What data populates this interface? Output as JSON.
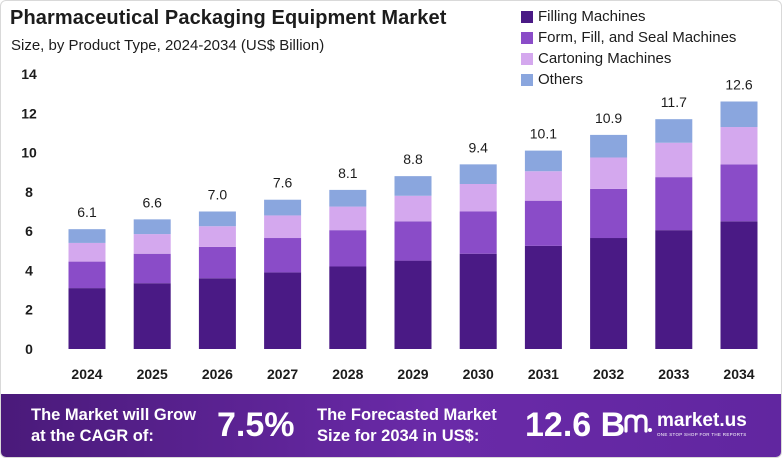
{
  "header": {
    "title": "Pharmaceutical Packaging Equipment Market",
    "subtitle": "Size, by Product Type, 2024-2034 (US$ Billion)"
  },
  "colors": {
    "filling": "#4a1a85",
    "ffs": "#8a4cc8",
    "cartoning": "#d4a8ee",
    "others": "#8aa6de",
    "footer_bg": "#5a2596"
  },
  "chart_data": {
    "type": "bar",
    "stacked": true,
    "title": "Pharmaceutical Packaging Equipment Market",
    "subtitle": "Size, by Product Type, 2024-2034 (US$ Billion)",
    "categories": [
      "2024",
      "2025",
      "2026",
      "2027",
      "2028",
      "2029",
      "2030",
      "2031",
      "2032",
      "2033",
      "2034"
    ],
    "totals": [
      "6.1",
      "6.6",
      "7.0",
      "7.6",
      "8.1",
      "8.8",
      "9.4",
      "10.1",
      "10.9",
      "11.7",
      "12.6"
    ],
    "series": [
      {
        "name": "Filling Machines",
        "color": "#4a1a85",
        "values": [
          3.1,
          3.35,
          3.6,
          3.9,
          4.2,
          4.5,
          4.85,
          5.25,
          5.65,
          6.05,
          6.5
        ]
      },
      {
        "name": "Form, Fill, and Seal Machines",
        "color": "#8a4cc8",
        "values": [
          1.35,
          1.5,
          1.6,
          1.75,
          1.85,
          2.0,
          2.15,
          2.3,
          2.5,
          2.7,
          2.9
        ]
      },
      {
        "name": "Cartoning Machines",
        "color": "#d4a8ee",
        "values": [
          0.95,
          1.0,
          1.05,
          1.15,
          1.2,
          1.3,
          1.4,
          1.5,
          1.6,
          1.75,
          1.9
        ]
      },
      {
        "name": "Others",
        "color": "#8aa6de",
        "values": [
          0.7,
          0.75,
          0.75,
          0.8,
          0.85,
          1.0,
          1.0,
          1.05,
          1.15,
          1.2,
          1.3
        ]
      }
    ],
    "yticks": [
      "0",
      "2",
      "4",
      "6",
      "8",
      "10",
      "12",
      "14"
    ],
    "ylim": [
      0,
      14
    ],
    "legend_position": "top-right",
    "grid": false
  },
  "footer": {
    "cagr_label": "The Market will Grow\nat the CAGR of:",
    "cagr_value": "7.5%",
    "forecast_label": "The Forecasted Market\nSize for 2034 in US$:",
    "forecast_value": "12.6 B",
    "brand_name": "market.us",
    "brand_tagline": "ONE STOP SHOP FOR THE REPORTS"
  }
}
